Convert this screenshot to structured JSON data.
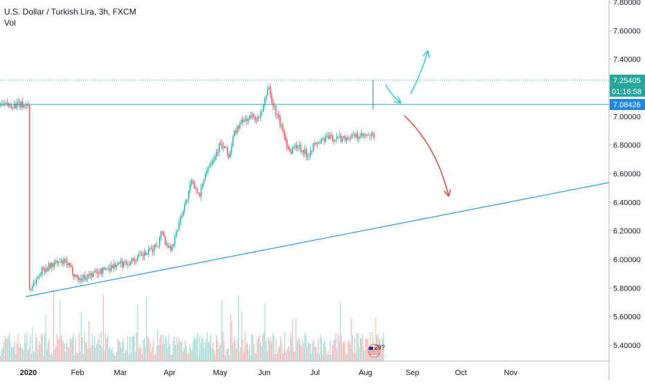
{
  "header": {
    "title": "U.S. Dollar / Turkish Lira, 3h, FXCM",
    "volume_label": "Vol"
  },
  "price_tags": {
    "upper": "7.25405",
    "countdown": "01:16:58",
    "current": "7.08426"
  },
  "icons": {
    "flag": "us-flag-icon",
    "event_count": "29?"
  },
  "colors": {
    "up": "#26a69a",
    "down": "#ef5350",
    "line": "#2196f3",
    "tag": "#26a69a",
    "current_tag": "#1e88e5",
    "red_arrow": "#e53935",
    "cyan_arrow": "#26c6da"
  },
  "chart_data": {
    "type": "candlestick",
    "title": "U.S. Dollar / Turkish Lira, 3h, FXCM",
    "y_ticks": [
      "7.80000",
      "7.60000",
      "7.40000",
      "7.20000",
      "7.00000",
      "6.80000",
      "6.60000",
      "6.40000",
      "6.20000",
      "6.00000",
      "5.80000",
      "5.60000",
      "5.40000"
    ],
    "x_ticks": [
      "2020",
      "Feb",
      "Mar",
      "Apr",
      "May",
      "Jun",
      "Jul",
      "Aug",
      "Sep",
      "Oct",
      "Nov"
    ],
    "ylim": [
      5.3,
      7.82
    ],
    "price_path": [
      [
        0,
        5.79
      ],
      [
        3,
        5.84
      ],
      [
        8,
        5.93
      ],
      [
        15,
        5.97
      ],
      [
        22,
        5.98
      ],
      [
        26,
        5.92
      ],
      [
        30,
        5.86
      ],
      [
        36,
        5.89
      ],
      [
        44,
        5.92
      ],
      [
        52,
        5.96
      ],
      [
        60,
        5.98
      ],
      [
        68,
        6.02
      ],
      [
        74,
        6.06
      ],
      [
        79,
        6.12
      ],
      [
        81,
        6.22
      ],
      [
        83,
        6.11
      ],
      [
        86,
        6.08
      ],
      [
        89,
        6.15
      ],
      [
        92,
        6.29
      ],
      [
        96,
        6.42
      ],
      [
        99,
        6.54
      ],
      [
        102,
        6.5
      ],
      [
        104,
        6.42
      ],
      [
        106,
        6.56
      ],
      [
        110,
        6.68
      ],
      [
        113,
        6.72
      ],
      [
        116,
        6.8
      ],
      [
        119,
        6.78
      ],
      [
        122,
        6.72
      ],
      [
        125,
        6.88
      ],
      [
        128,
        6.94
      ],
      [
        132,
        6.98
      ],
      [
        136,
        7.0
      ],
      [
        140,
        6.98
      ],
      [
        143,
        7.06
      ],
      [
        145,
        7.18
      ],
      [
        146,
        7.22
      ],
      [
        148,
        7.1
      ],
      [
        151,
        7.02
      ],
      [
        154,
        6.92
      ],
      [
        157,
        6.82
      ],
      [
        159,
        6.75
      ],
      [
        161,
        6.78
      ],
      [
        164,
        6.8
      ],
      [
        167,
        6.76
      ],
      [
        170,
        6.73
      ],
      [
        173,
        6.79
      ],
      [
        177,
        6.82
      ],
      [
        181,
        6.85
      ],
      [
        186,
        6.85
      ],
      [
        192,
        6.85
      ],
      [
        198,
        6.86
      ],
      [
        204,
        6.86
      ],
      [
        210,
        6.86
      ],
      [
        215,
        6.86
      ],
      [
        219,
        6.87
      ],
      [
        222,
        6.82
      ],
      [
        225,
        6.85
      ],
      [
        227,
        6.96
      ],
      [
        229,
        7.0
      ],
      [
        231,
        6.97
      ],
      [
        233,
        6.92
      ],
      [
        234,
        6.95
      ],
      [
        235,
        7.08
      ]
    ],
    "horizontal_levels": [
      7.254,
      7.084
    ],
    "trendline": {
      "from": [
        -2,
        5.74
      ],
      "to": [
        400,
        6.64
      ]
    }
  }
}
